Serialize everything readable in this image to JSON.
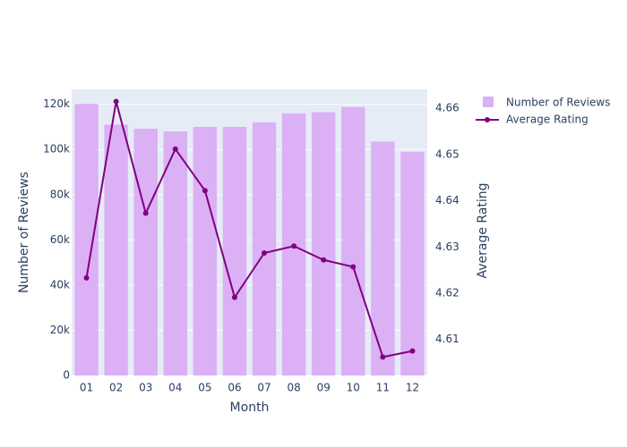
{
  "chart_data": {
    "type": "bar",
    "categories": [
      "01",
      "02",
      "03",
      "04",
      "05",
      "06",
      "07",
      "08",
      "09",
      "10",
      "11",
      "12"
    ],
    "series": [
      {
        "name": "Number of Reviews",
        "type": "bar",
        "axis": "y",
        "values": [
          120200,
          111000,
          109200,
          108000,
          110000,
          110000,
          112000,
          116000,
          116500,
          118800,
          103500,
          99000
        ]
      },
      {
        "name": "Average Rating",
        "type": "line",
        "axis": "y2",
        "values": [
          4.6233,
          4.6615,
          4.6373,
          4.6512,
          4.6422,
          4.6191,
          4.6287,
          4.6302,
          4.6272,
          4.6257,
          4.6062,
          4.6075
        ]
      }
    ],
    "xlabel": "Month",
    "ylabel": "Number of Reviews",
    "y2label": "Average Rating",
    "ylim": [
      0,
      126600
    ],
    "y2lim": [
      4.6022,
      4.6641
    ],
    "yticks": [
      0,
      20000,
      40000,
      60000,
      80000,
      100000,
      120000
    ],
    "ytick_labels": [
      "0",
      "20k",
      "40k",
      "60k",
      "80k",
      "100k",
      "120k"
    ],
    "y2ticks": [
      4.61,
      4.62,
      4.63,
      4.64,
      4.65,
      4.66
    ],
    "y2tick_labels": [
      "4.61",
      "4.62",
      "4.63",
      "4.64",
      "4.65",
      "4.66"
    ],
    "grid": true,
    "legend_position": "top-right",
    "colors": {
      "bar": "#dcb0f5",
      "line": "#800080",
      "plot_bg": "#e5ecf6",
      "grid": "#ffffff",
      "text": "#2a3f5f"
    }
  }
}
